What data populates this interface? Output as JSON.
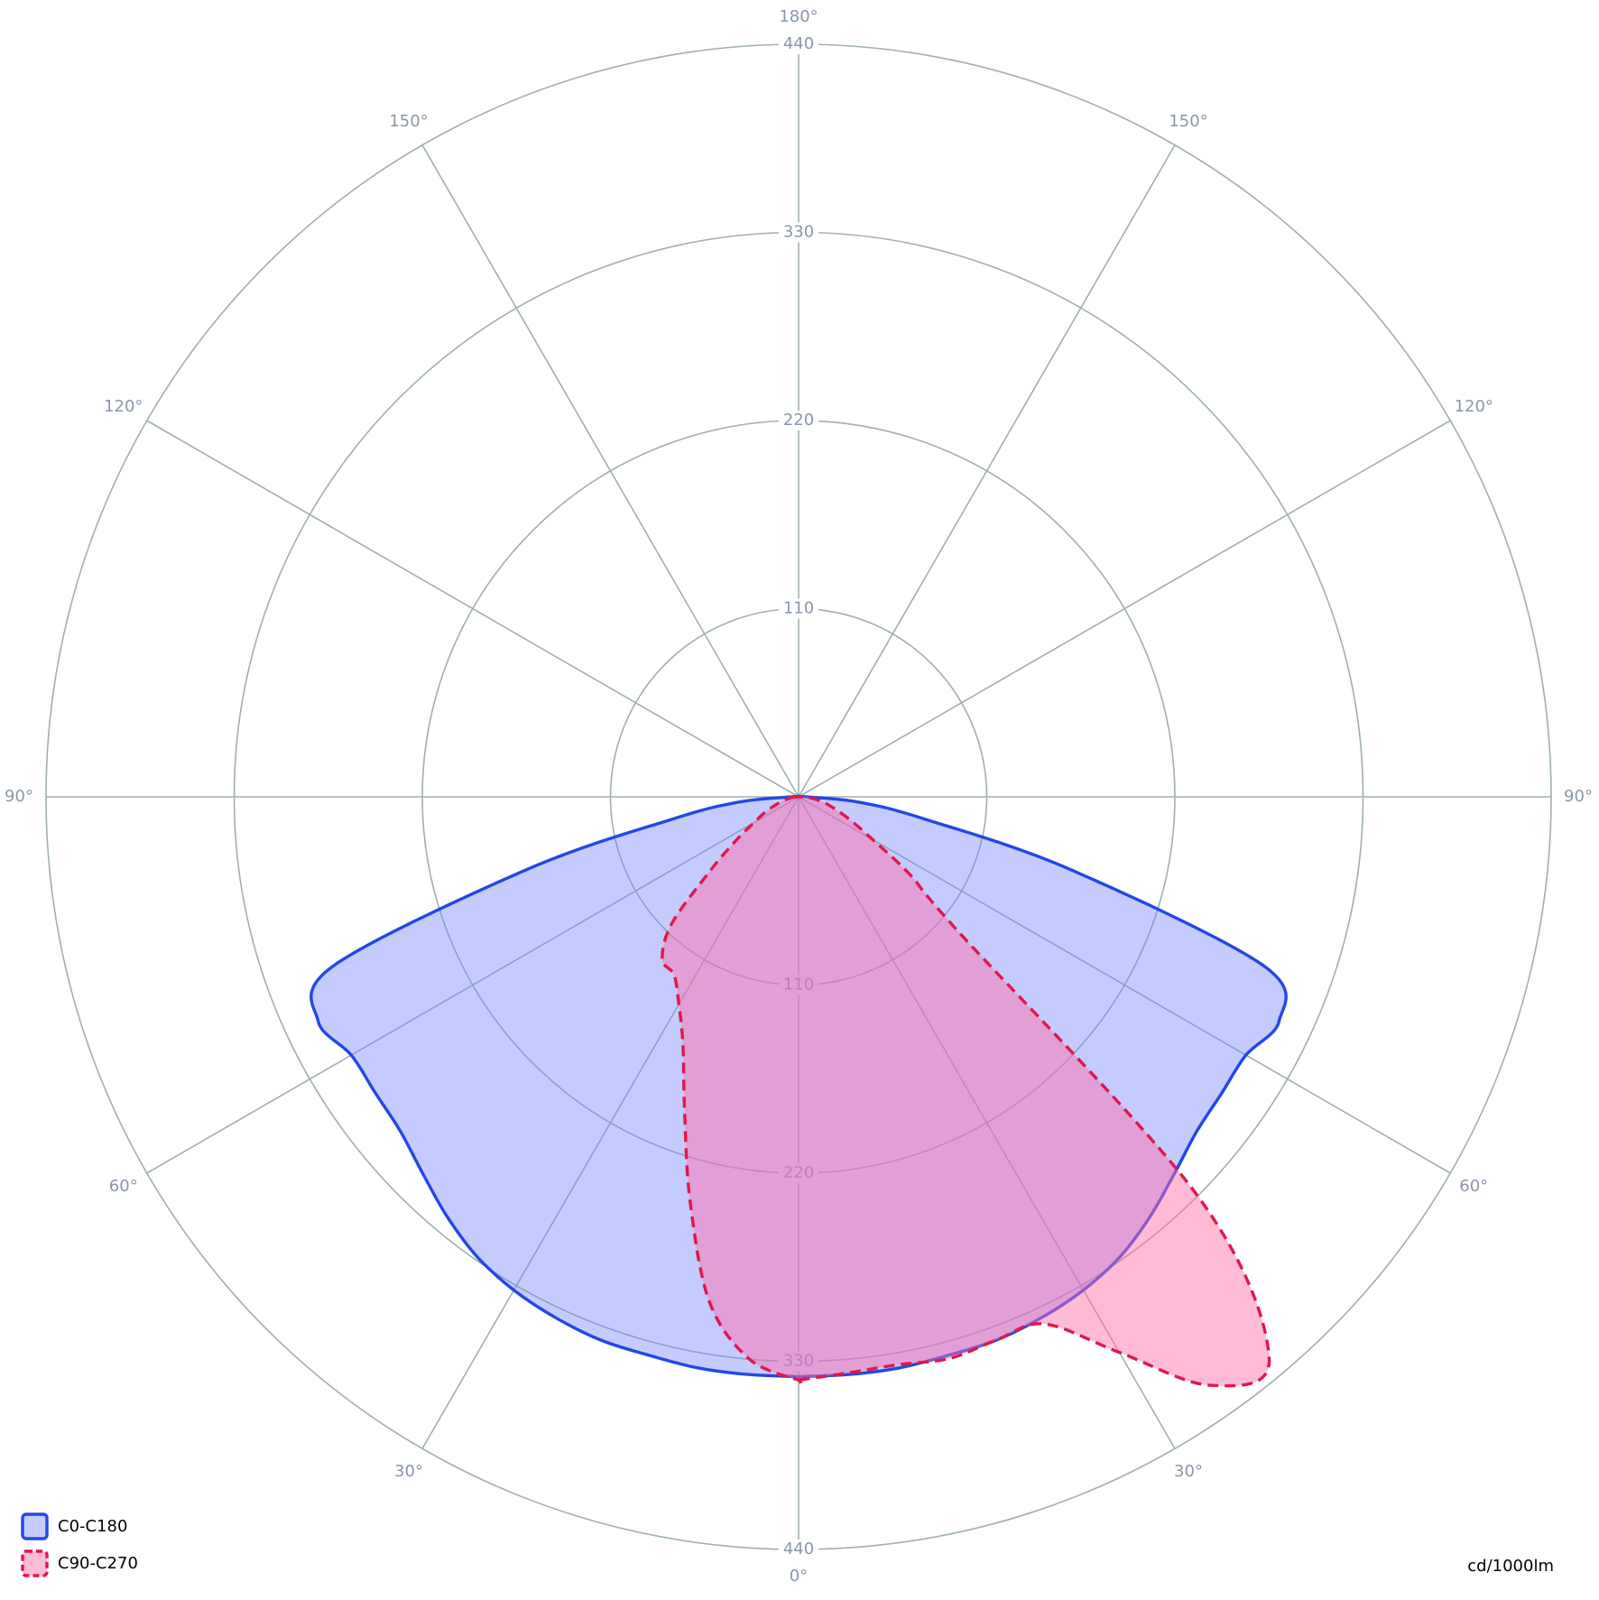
{
  "chart_data": {
    "type": "polar",
    "unit_label": "cd/1000lm",
    "x": [
      0,
      5,
      10,
      15,
      20,
      25,
      30,
      35,
      40,
      45,
      50,
      55,
      60,
      65,
      70,
      75,
      80,
      85,
      90
    ],
    "rlim": [
      0,
      440
    ],
    "rticks": [
      110,
      220,
      330,
      440
    ],
    "angle_ticks": [
      {
        "value": 0,
        "label": "0°"
      },
      {
        "value": 30,
        "label": "30°"
      },
      {
        "value": 60,
        "label": "60°"
      },
      {
        "value": 90,
        "label": "90°"
      },
      {
        "value": 120,
        "label": "120°"
      },
      {
        "value": 150,
        "label": "150°"
      },
      {
        "value": 180,
        "label": "180°"
      }
    ],
    "grid": true,
    "legend": "bottom-left",
    "series": [
      {
        "name": "C0-C180",
        "color": "#2347e6",
        "fill": "rgba(120,132,250,0.42)",
        "dashed": false,
        "values": [
          339,
          339,
          339,
          338,
          338,
          336,
          333,
          328,
          320,
          311,
          304,
          302,
          302,
          310,
          290,
          165,
          75,
          35,
          4
        ],
        "left_values": [
          339,
          339,
          339,
          338,
          338,
          336,
          333,
          328,
          320,
          311,
          304,
          302,
          302,
          310,
          290,
          165,
          75,
          35,
          4
        ]
      },
      {
        "name": "C90-C270",
        "color": "#e0174a",
        "fill": "rgba(255,110,170,0.48)",
        "dashed": true,
        "values": [
          341,
          338,
          337,
          340,
          338,
          340,
          375,
          420,
          428,
          330,
          120,
          80,
          50,
          35,
          25,
          18,
          12,
          7,
          3
        ],
        "left_values": [
          341,
          330,
          300,
          245,
          195,
          160,
          140,
          127,
          124,
          105,
          68,
          45,
          30,
          22,
          15,
          10,
          6,
          4,
          2
        ]
      }
    ]
  }
}
